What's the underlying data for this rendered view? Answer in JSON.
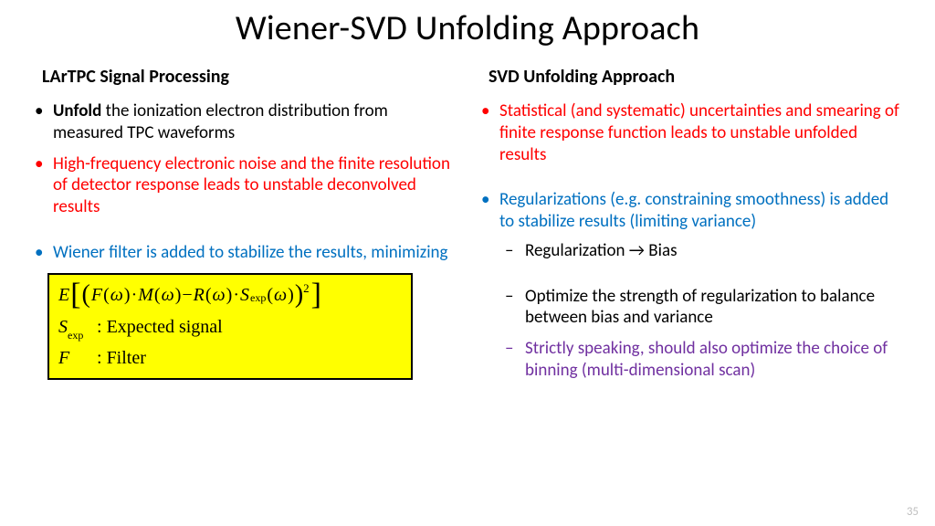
{
  "title": "Wiener-SVD Unfolding Approach",
  "left": {
    "header": "LArTPC Signal Processing",
    "items": [
      {
        "color": "black",
        "html": "<b>Unfold</b> the ionization electron distribution from measured TPC waveforms"
      },
      {
        "color": "red",
        "text": "High-frequency electronic noise and the finite resolution of detector response leads to unstable deconvolved results"
      },
      {
        "spacer": true
      },
      {
        "color": "blue",
        "text": "Wiener filter is added to stabilize the results, minimizing"
      }
    ]
  },
  "right": {
    "header": "SVD Unfolding Approach",
    "items": [
      {
        "color": "red",
        "text": "Statistical (and systematic) uncertainties and smearing of finite response function leads to unstable unfolded results"
      },
      {
        "spacer": true
      },
      {
        "color": "blue",
        "text": "Regularizations (e.g. constraining smoothness) is added to stabilize results (limiting variance)",
        "sub": [
          {
            "color": "black",
            "text": "Regularization → Bias"
          },
          {
            "spacer": true
          },
          {
            "color": "black",
            "text": "Optimize the strength of regularization to balance between bias and variance"
          },
          {
            "color": "purple",
            "text": "Strictly speaking, should also optimize the choice of binning (multi-dimensional scan)"
          }
        ]
      }
    ]
  },
  "eq": {
    "sexp_label": "Expected signal",
    "filter_label": "Filter"
  },
  "colors": {
    "red": "#ff0000",
    "blue": "#0070c0",
    "purple": "#7030a0",
    "black": "#000000",
    "highlight_bg": "#ffff00",
    "pagenum": "#bfbfbf"
  },
  "page_number": "35"
}
